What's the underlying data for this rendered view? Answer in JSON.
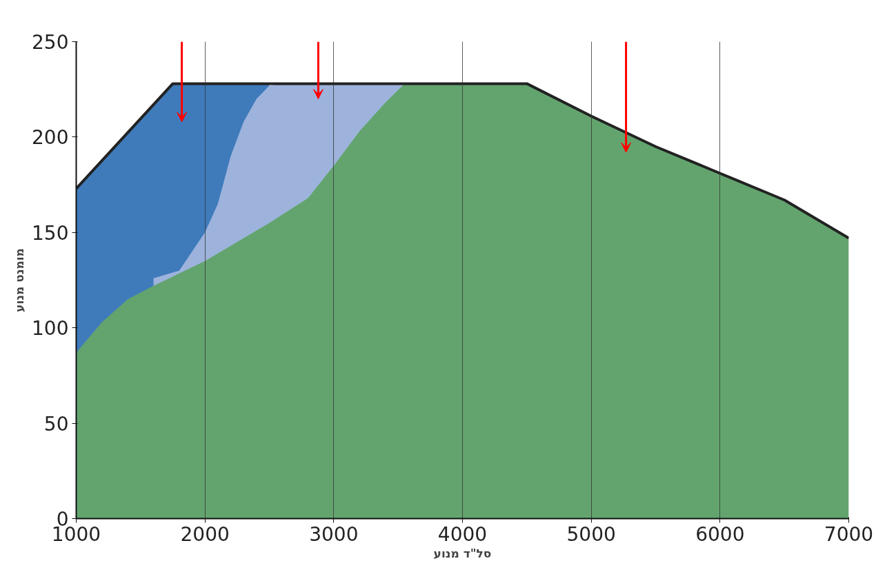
{
  "chart_data": {
    "type": "area",
    "xlabel": "סל\"ד מנוע",
    "ylabel": "מומנט מנוע",
    "xlim": [
      1000,
      7000
    ],
    "ylim": [
      0,
      250
    ],
    "xticks": [
      1000,
      2000,
      3000,
      4000,
      5000,
      6000,
      7000
    ],
    "yticks": [
      0,
      50,
      100,
      150,
      200,
      250
    ],
    "grid": "x",
    "marker": "none",
    "series": [
      {
        "color": "#3f7bbb",
        "x": [
          1000,
          1750,
          2500
        ],
        "values": [
          173,
          228,
          228
        ]
      },
      {
        "color": "#9db3dc",
        "x": [
          1600,
          1800,
          2000,
          2100,
          2200,
          2300,
          2400,
          2500,
          2600,
          3550
        ],
        "values": [
          126,
          130,
          150,
          165,
          190,
          208,
          220,
          227,
          228,
          228
        ]
      },
      {
        "color": "#63a46e",
        "x": [
          1000,
          1200,
          1400,
          1600,
          2000,
          2500,
          2800,
          3000,
          3200,
          3400,
          3550,
          4500,
          5000,
          5500,
          6000,
          6500,
          7000
        ],
        "values": [
          87,
          103,
          115,
          122,
          135,
          155,
          168,
          185,
          203,
          218,
          228,
          228,
          211,
          195,
          181,
          167,
          147
        ]
      },
      {
        "type": "line",
        "color": "#222222",
        "line_style": "solid",
        "x": [
          1000,
          1750,
          4500,
          5000,
          5500,
          6000,
          6500,
          7000
        ],
        "values": [
          173,
          228,
          228,
          211,
          195,
          181,
          167,
          147
        ]
      }
    ]
  }
}
